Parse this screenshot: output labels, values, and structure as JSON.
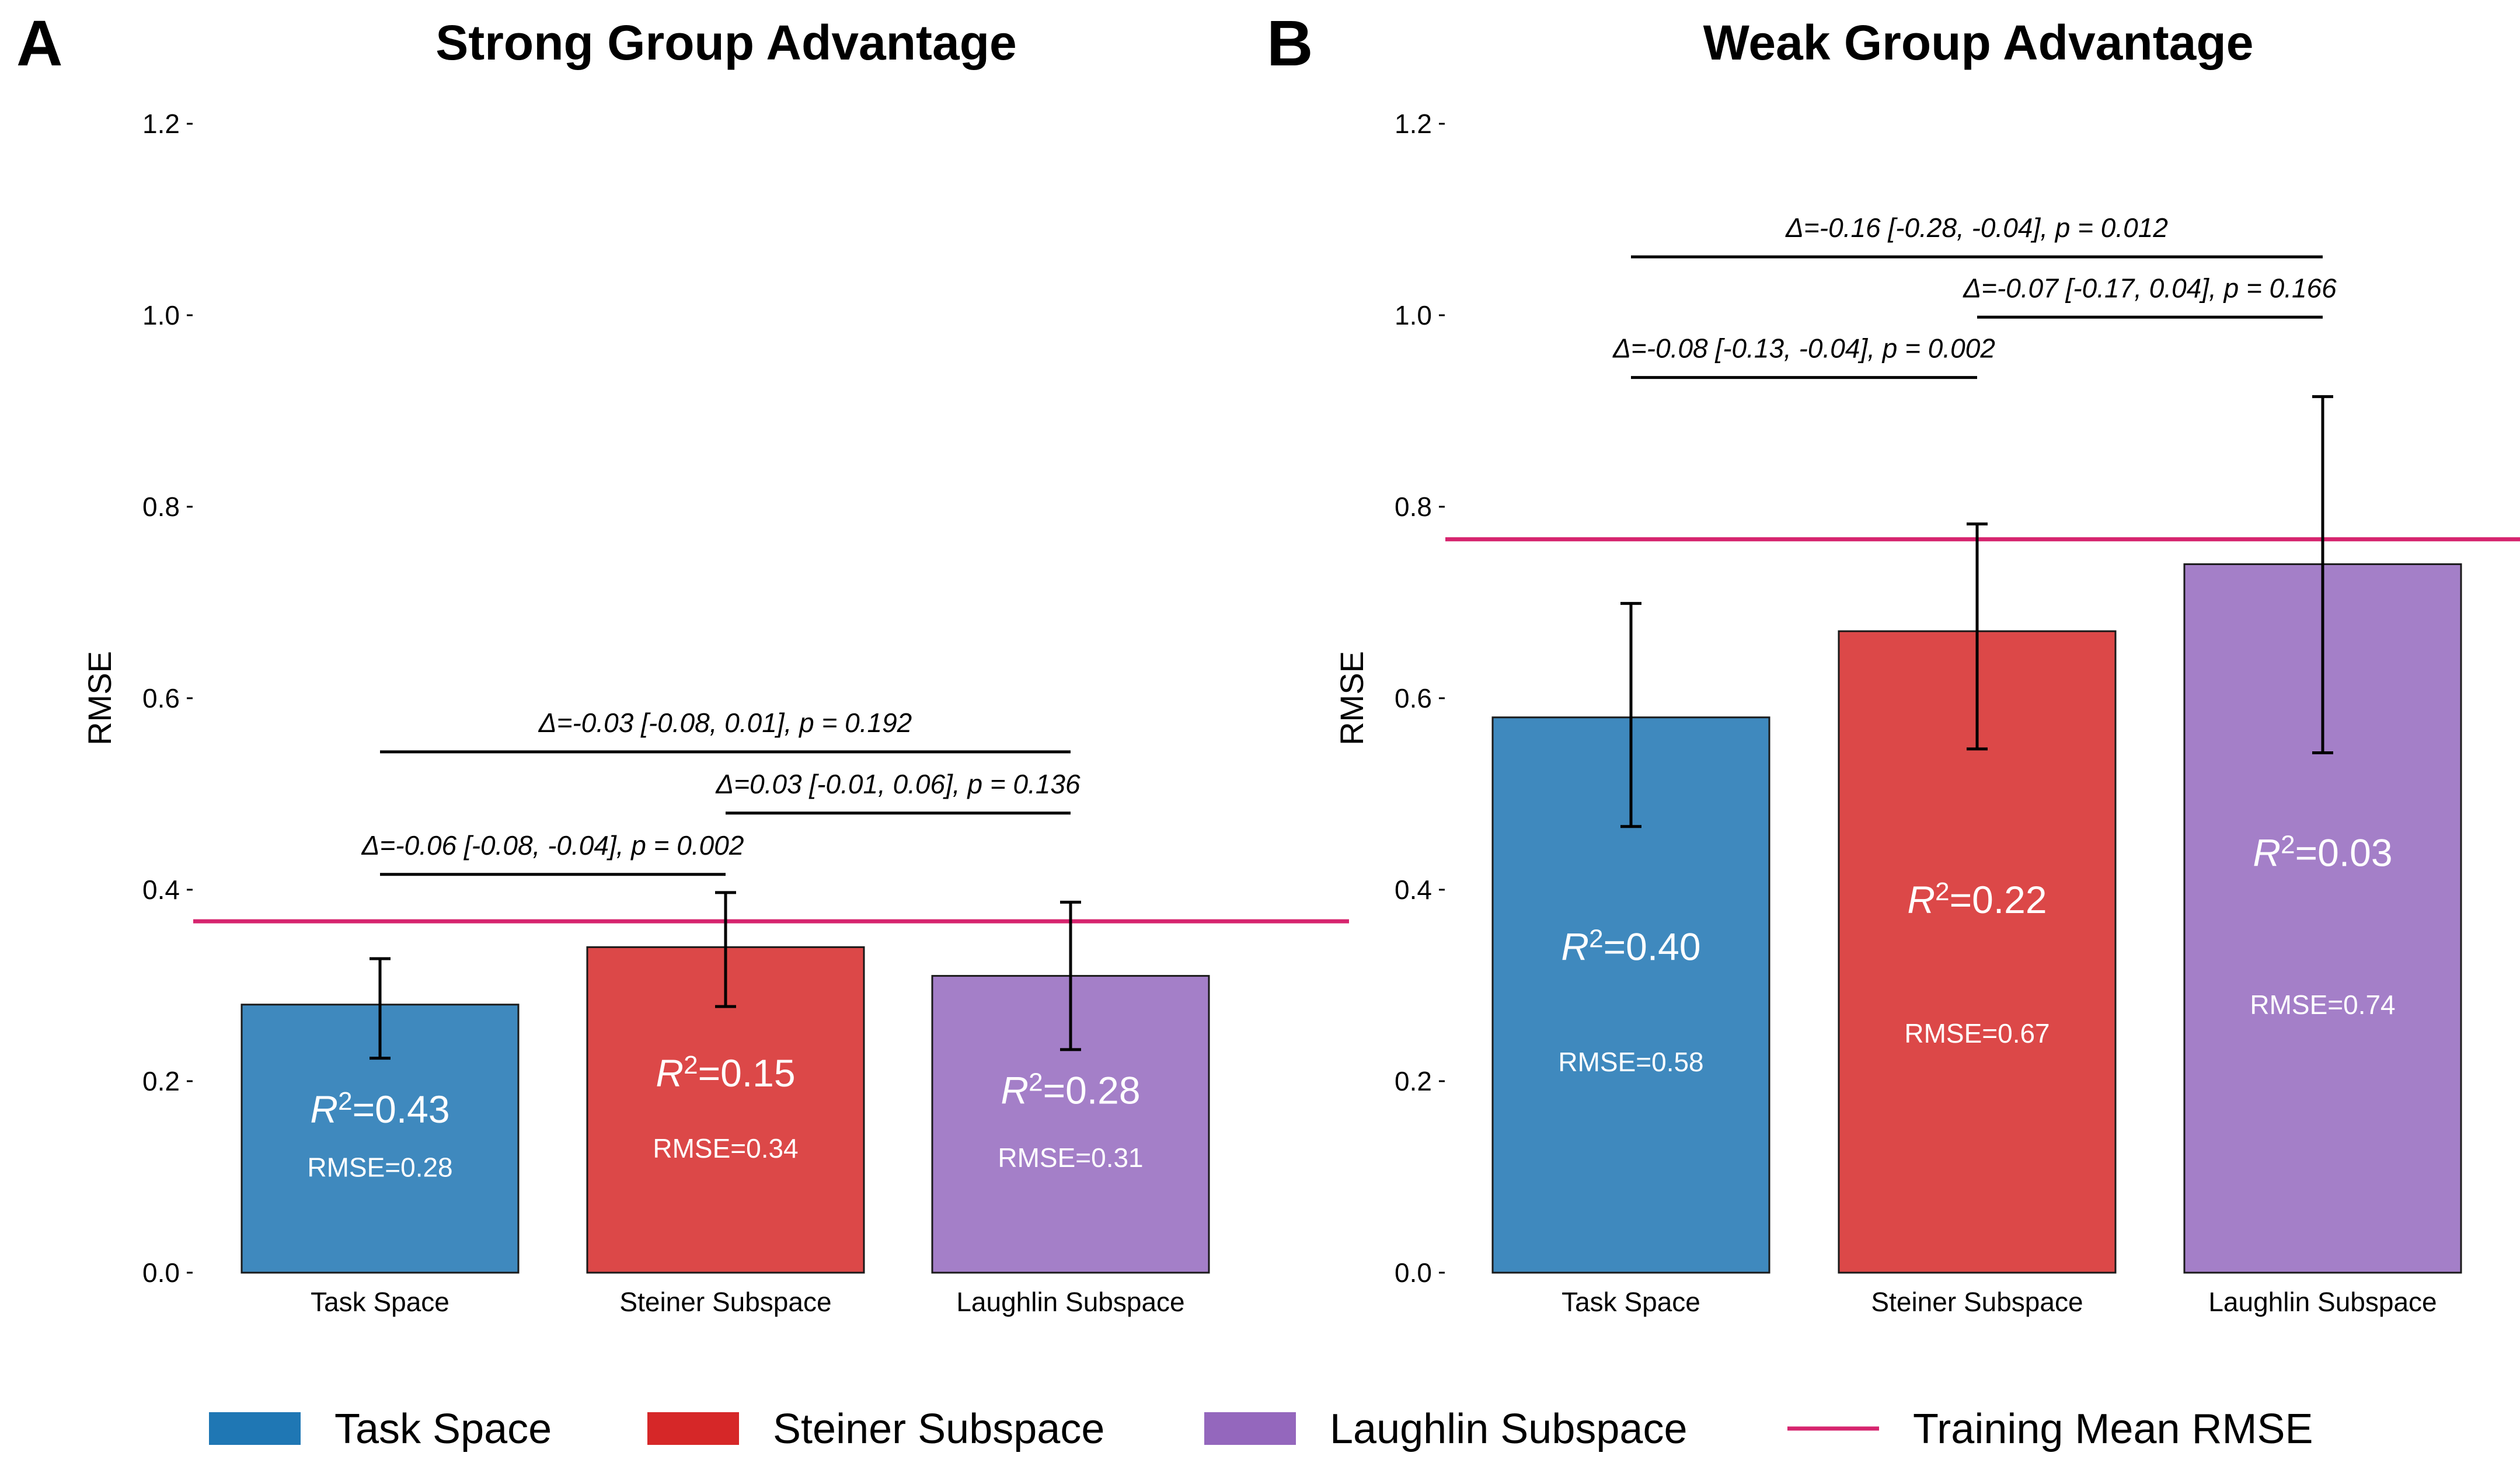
{
  "figure": {
    "legend": [
      {
        "label": "Task Space",
        "kind": "patch",
        "color": "#1f77b4"
      },
      {
        "label": "Steiner Subspace",
        "kind": "patch",
        "color": "#d62728"
      },
      {
        "label": "Laughlin Subspace",
        "kind": "patch",
        "color": "#9467bd"
      },
      {
        "label": "Training Mean RMSE",
        "kind": "line",
        "color": "#d6246e"
      }
    ]
  },
  "chart_data": [
    {
      "panel": "A",
      "type": "bar",
      "title": "Strong Group Advantage",
      "xlabel": "",
      "ylabel": "RMSE",
      "ylim": [
        0,
        1.2
      ],
      "yticks": [
        0.0,
        0.2,
        0.4,
        0.6,
        0.8,
        1.0,
        1.2
      ],
      "ytick_labels": [
        "0.0",
        "0.2",
        "0.4",
        "0.6",
        "0.8",
        "1.0",
        "1.2"
      ],
      "grid": false,
      "legend_position": "bottom",
      "categories": [
        "Task Space",
        "Steiner Subspace",
        "Laughlin Subspace"
      ],
      "colors": [
        "#3f89be",
        "#dc4848",
        "#a47fc8"
      ],
      "values": [
        0.28,
        0.34,
        0.31
      ],
      "error_low": [
        0.224,
        0.278,
        0.233
      ],
      "error_high": [
        0.328,
        0.397,
        0.387
      ],
      "r2_symbol": "R",
      "r2_power": "2",
      "r2_values": [
        "=0.43",
        "=0.15",
        "=0.28"
      ],
      "r2_y": [
        0.17,
        0.208,
        0.19
      ],
      "rmse_labels": [
        "RMSE=0.28",
        "RMSE=0.34",
        "RMSE=0.31"
      ],
      "rmse_y": [
        0.11,
        0.13,
        0.12
      ],
      "reference_line": {
        "label": "Training Mean RMSE",
        "value": 0.367,
        "color": "#d6246e"
      },
      "comparisons": [
        {
          "from": 0,
          "to": 1,
          "y": 0.416,
          "label": "Δ=-0.06 [-0.08, -0.04], p = 0.002"
        },
        {
          "from": 1,
          "to": 2,
          "y": 0.48,
          "label": "Δ=0.03 [-0.01, 0.06], p = 0.136"
        },
        {
          "from": 0,
          "to": 2,
          "y": 0.544,
          "label": "Δ=-0.03 [-0.08, 0.01], p = 0.192"
        }
      ]
    },
    {
      "panel": "B",
      "type": "bar",
      "title": "Weak Group Advantage",
      "xlabel": "",
      "ylabel": "RMSE",
      "ylim": [
        0,
        1.2
      ],
      "yticks": [
        0.0,
        0.2,
        0.4,
        0.6,
        0.8,
        1.0,
        1.2
      ],
      "ytick_labels": [
        "0.0",
        "0.2",
        "0.4",
        "0.6",
        "0.8",
        "1.0",
        "1.2"
      ],
      "grid": false,
      "legend_position": "bottom",
      "categories": [
        "Task Space",
        "Steiner Subspace",
        "Laughlin Subspace"
      ],
      "colors": [
        "#3f89be",
        "#dc4848",
        "#a47fc8"
      ],
      "values": [
        0.58,
        0.67,
        0.74
      ],
      "error_low": [
        0.466,
        0.547,
        0.543
      ],
      "error_high": [
        0.699,
        0.782,
        0.915
      ],
      "r2_symbol": "R",
      "r2_power": "2",
      "r2_values": [
        "=0.40",
        "=0.22",
        "=0.03"
      ],
      "r2_y": [
        0.34,
        0.389,
        0.438
      ],
      "rmse_labels": [
        "RMSE=0.58",
        "RMSE=0.67",
        "RMSE=0.74"
      ],
      "rmse_y": [
        0.22,
        0.25,
        0.28
      ],
      "reference_line": {
        "label": "Training Mean RMSE",
        "value": 0.766,
        "color": "#d6246e"
      },
      "comparisons": [
        {
          "from": 0,
          "to": 1,
          "y": 0.935,
          "label": "Δ=-0.08 [-0.13, -0.04], p = 0.002"
        },
        {
          "from": 1,
          "to": 2,
          "y": 0.998,
          "label": "Δ=-0.07 [-0.17, 0.04], p = 0.166"
        },
        {
          "from": 0,
          "to": 2,
          "y": 1.061,
          "label": "Δ=-0.16 [-0.28, -0.04], p = 0.012"
        }
      ]
    }
  ]
}
